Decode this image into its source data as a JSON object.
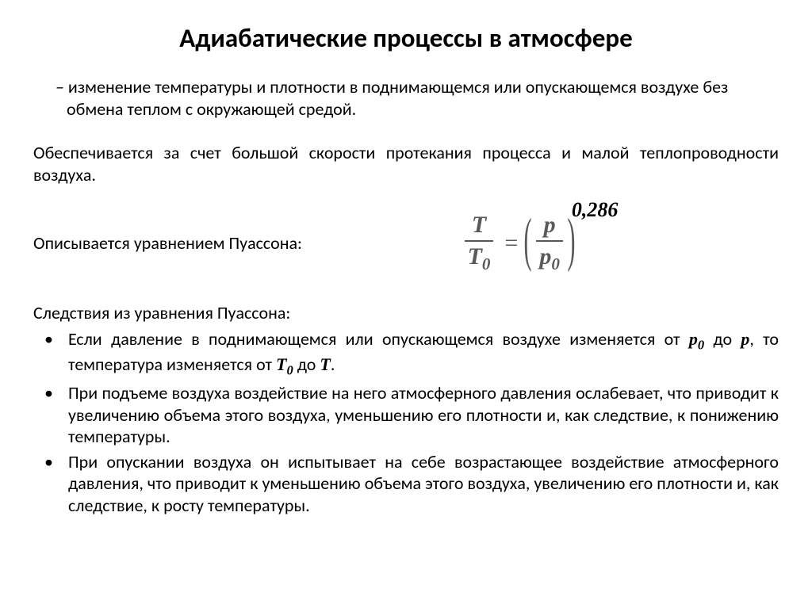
{
  "title": "Адиабатические процессы в атмосфере",
  "definition": "– изменение температуры и плотности в поднимающемся или опускающемся воздухе без обмена теплом с окружающей средой.",
  "para_condition": "Обеспечивается за счет большой скорости протекания процесса и малой теплопроводности воздуха.",
  "eq_label": "Описывается уравнением Пуассона:",
  "poisson": {
    "T": "T",
    "T0": "T",
    "T0_sub": "0",
    "eq": "=",
    "p": "p",
    "p0": "p",
    "p0_sub": "0",
    "exponent": "0,286",
    "color": "#595959"
  },
  "conseq_label": "Следствия из уравнения Пуассона:",
  "bullets": {
    "b1_pre": "Если давление в поднимающемся или опускающемся воздухе изменяется от ",
    "b1_p0": "p",
    "b1_p0_sub": "0",
    "b1_mid1": " до ",
    "b1_p": "p",
    "b1_mid2": ", то температура изменяется от ",
    "b1_T0": "T",
    "b1_T0_sub": "0",
    "b1_mid3": " до ",
    "b1_T": "T",
    "b1_end": ".",
    "b2": "При подъеме воздуха воздействие на него атмосферного давления ослабевает, что приводит к увеличению объема этого воздуха, уменьшению его плотности и, как следствие, к понижению температуры.",
    "b3": "При опускании воздуха он испытывает на себе возрастающее воздействие атмосферного давления, что приводит к уменьшению объема этого воздуха, увеличению его плотности и, как следствие, к росту температуры."
  },
  "style": {
    "background": "#ffffff",
    "text_color": "#000000",
    "title_fontsize": 33,
    "body_fontsize": 22,
    "eq_fontsize": 30,
    "eq_color": "#595959",
    "exponent_color": "#000000",
    "font_family": "Calibri",
    "eq_font_family": "Times New Roman"
  }
}
